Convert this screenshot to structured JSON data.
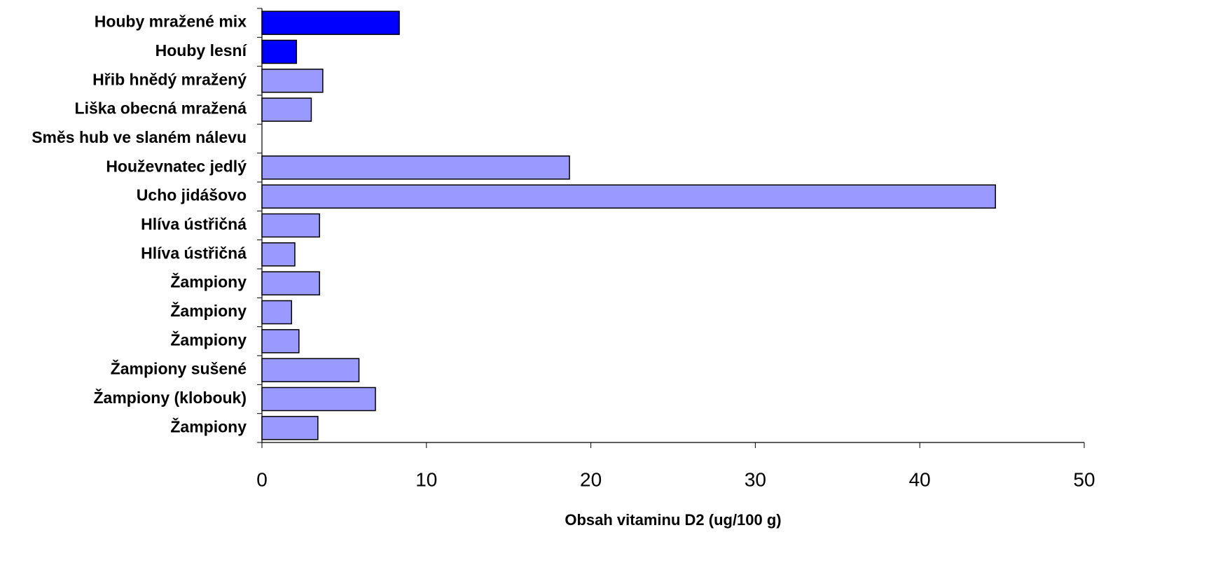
{
  "chart_data": {
    "type": "hbar",
    "x_label": "Obsah vitaminu D2 (ug/100 g)",
    "categories": [
      "Houby mražené mix",
      "Houby lesní",
      "Hřib hnědý mražený",
      "Liška obecná mražená",
      "Směs hub ve slaném nálevu",
      "Houževnatec jedlý",
      "Ucho jidášovo",
      "Hlíva ústřičná",
      "Hlíva ústřičná",
      "Žampiony",
      "Žampiony",
      "Žampiony",
      "Žampiony sušené",
      "Žampiony (klobouk)",
      "Žampiony"
    ],
    "values": [
      8.35,
      2.1,
      3.7,
      3.0,
      0,
      18.7,
      44.6,
      3.5,
      2.0,
      3.5,
      1.8,
      2.25,
      5.9,
      6.9,
      3.4
    ],
    "colors": [
      "#0000ff",
      "#0000ff",
      "#9999ff",
      "#9999ff",
      "#9999ff",
      "#9999ff",
      "#9999ff",
      "#9999ff",
      "#9999ff",
      "#9999ff",
      "#9999ff",
      "#9999ff",
      "#9999ff",
      "#9999ff",
      "#9999ff"
    ],
    "xlim": [
      0,
      50
    ],
    "xticks": [
      0,
      10,
      20,
      30,
      40,
      50
    ]
  }
}
